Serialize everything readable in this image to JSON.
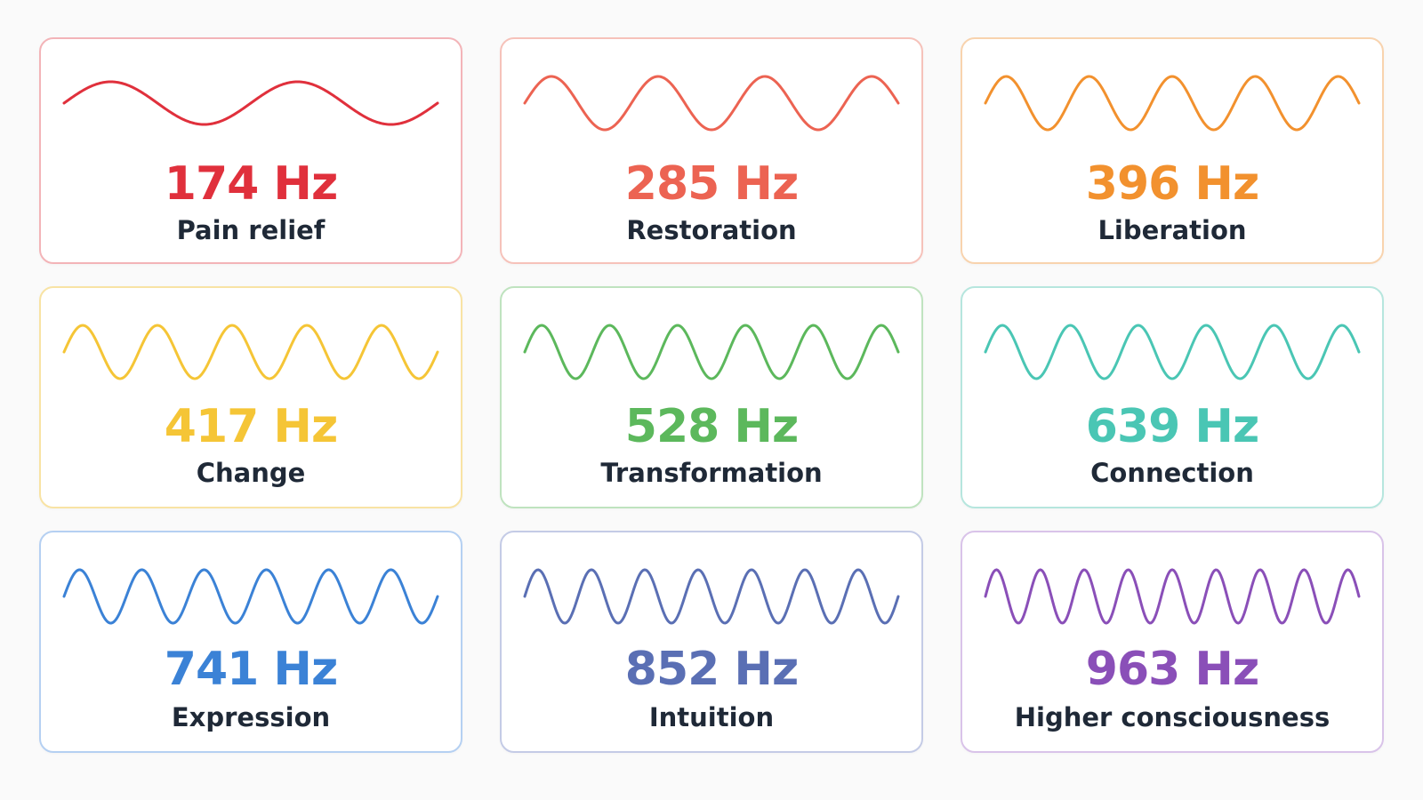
{
  "cards": [
    {
      "frequency": "174 Hz",
      "label": "Pain relief",
      "color": "#e0303c",
      "border": "#f3b4b8",
      "cycles": 2.0
    },
    {
      "frequency": "285 Hz",
      "label": "Restoration",
      "color": "#ec6352",
      "border": "#f6c2ba",
      "cycles": 3.5
    },
    {
      "frequency": "396 Hz",
      "label": "Liberation",
      "color": "#f2912e",
      "border": "#f8d3ae",
      "cycles": 4.5
    },
    {
      "frequency": "417 Hz",
      "label": "Change",
      "color": "#f5c536",
      "border": "#f8e3a4",
      "cycles": 5.0
    },
    {
      "frequency": "528 Hz",
      "label": "Transformation",
      "color": "#5cb85c",
      "border": "#bfe3bf",
      "cycles": 5.5
    },
    {
      "frequency": "639 Hz",
      "label": "Connection",
      "color": "#4ac6b4",
      "border": "#b6e6de",
      "cycles": 5.5
    },
    {
      "frequency": "741 Hz",
      "label": "Expression",
      "color": "#3b82d6",
      "border": "#b5d0f2",
      "cycles": 6.0
    },
    {
      "frequency": "852 Hz",
      "label": "Intuition",
      "color": "#5a6fb4",
      "border": "#c4cbe6",
      "cycles": 7.0
    },
    {
      "frequency": "963 Hz",
      "label": "Higher consciousness",
      "color": "#8a4fb8",
      "border": "#d9c3e9",
      "cycles": 8.5
    }
  ]
}
